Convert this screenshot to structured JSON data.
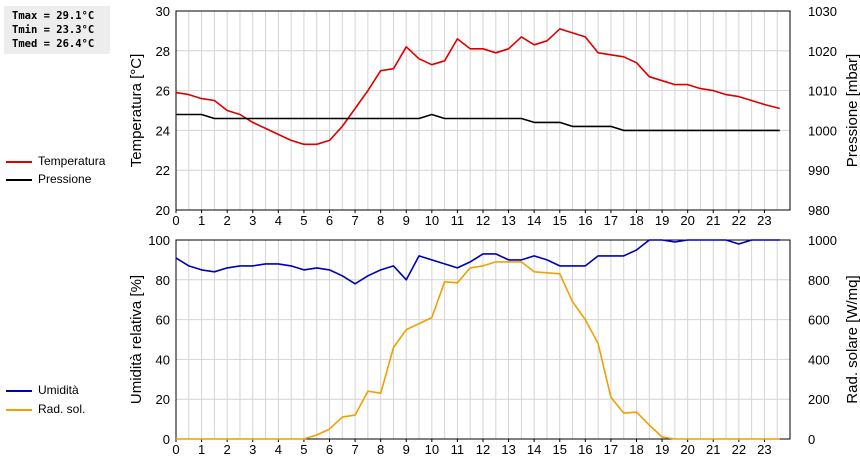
{
  "stats": {
    "tmax": "Tmax = 29.1°C",
    "tmin": "Tmin = 23.3°C",
    "tmed": "Tmed = 26.4°C"
  },
  "legend_top": [
    {
      "label": "Temperatura",
      "color": "#dd0000"
    },
    {
      "label": "Pressione",
      "color": "#000000"
    }
  ],
  "legend_bottom": [
    {
      "label": "Umidità",
      "color": "#0000bb"
    },
    {
      "label": "Rad. sol.",
      "color": "#f0a000"
    }
  ],
  "chart_data": [
    {
      "type": "line",
      "grid": true,
      "xlabel": "",
      "xlim": [
        0,
        24
      ],
      "x_ticks": [
        "0",
        "1",
        "2",
        "3",
        "4",
        "5",
        "6",
        "7",
        "8",
        "9",
        "10",
        "11",
        "12",
        "13",
        "14",
        "15",
        "16",
        "17",
        "18",
        "19",
        "20",
        "21",
        "22",
        "23"
      ],
      "y_left_label": "Temperatura [°C]",
      "y_left_lim": [
        20,
        30
      ],
      "y_left_ticks": [
        "20",
        "22",
        "24",
        "26",
        "28",
        "30"
      ],
      "y_right_label": "Pressione [mbar]",
      "y_right_lim": [
        980,
        1030
      ],
      "y_right_ticks": [
        "980",
        "990",
        "1000",
        "1010",
        "1020",
        "1030"
      ],
      "series": [
        {
          "name": "Temperatura",
          "axis": "left",
          "color": "#dd0000",
          "x": [
            0,
            0.5,
            1,
            1.5,
            2,
            2.5,
            3,
            3.5,
            4,
            4.5,
            5,
            5.5,
            6,
            6.5,
            7,
            7.5,
            8,
            8.5,
            9,
            9.5,
            10,
            10.5,
            11,
            11.5,
            12,
            12.5,
            13,
            13.5,
            14,
            14.5,
            15,
            15.5,
            16,
            16.5,
            17,
            17.5,
            18,
            18.5,
            19,
            19.5,
            20,
            20.5,
            21,
            21.5,
            22,
            22.5,
            23,
            23.6
          ],
          "y": [
            25.9,
            25.8,
            25.6,
            25.5,
            25.0,
            24.8,
            24.4,
            24.1,
            23.8,
            23.5,
            23.3,
            23.3,
            23.5,
            24.2,
            25.1,
            26.0,
            27.0,
            27.1,
            28.2,
            27.6,
            27.3,
            27.5,
            28.6,
            28.1,
            28.1,
            27.9,
            28.1,
            28.7,
            28.3,
            28.5,
            29.1,
            28.9,
            28.7,
            27.9,
            27.8,
            27.7,
            27.4,
            26.7,
            26.5,
            26.3,
            26.3,
            26.1,
            26.0,
            25.8,
            25.7,
            25.5,
            25.3,
            25.1
          ]
        },
        {
          "name": "Pressione",
          "axis": "right",
          "color": "#000000",
          "x": [
            0,
            1,
            1.5,
            3,
            9.5,
            10,
            10.5,
            13.5,
            14,
            15,
            15.5,
            17,
            17.5,
            23.6
          ],
          "y": [
            1004,
            1004,
            1003,
            1003,
            1003,
            1004,
            1003,
            1003,
            1002,
            1002,
            1001,
            1001,
            1000,
            1000
          ]
        }
      ]
    },
    {
      "type": "line",
      "grid": true,
      "xlabel": "",
      "xlim": [
        0,
        24
      ],
      "x_ticks": [
        "0",
        "1",
        "2",
        "3",
        "4",
        "5",
        "6",
        "7",
        "8",
        "9",
        "10",
        "11",
        "12",
        "13",
        "14",
        "15",
        "16",
        "17",
        "18",
        "19",
        "20",
        "21",
        "22",
        "23"
      ],
      "y_left_label": "Umidità relativa [%]",
      "y_left_lim": [
        0,
        100
      ],
      "y_left_ticks": [
        "0",
        "20",
        "40",
        "60",
        "80",
        "100"
      ],
      "y_right_label": "Rad. solare [W/mq]",
      "y_right_lim": [
        0,
        1000
      ],
      "y_right_ticks": [
        "0",
        "200",
        "400",
        "600",
        "800",
        "1000"
      ],
      "series": [
        {
          "name": "Umidità",
          "axis": "left",
          "color": "#0000bb",
          "x": [
            0,
            0.5,
            1,
            1.5,
            2,
            2.5,
            3,
            3.5,
            4,
            4.5,
            5,
            5.5,
            6,
            6.5,
            7,
            7.5,
            8,
            8.5,
            9,
            9.5,
            10,
            10.5,
            11,
            11.5,
            12,
            12.5,
            13,
            13.5,
            14,
            14.5,
            15,
            15.5,
            16,
            16.5,
            17,
            17.5,
            18,
            18.5,
            19,
            19.5,
            20,
            20.5,
            21,
            21.5,
            22,
            22.5,
            23,
            23.6
          ],
          "y": [
            91,
            87,
            85,
            84,
            86,
            87,
            87,
            88,
            88,
            87,
            85,
            86,
            85,
            82,
            78,
            82,
            85,
            87,
            80,
            92,
            90,
            88,
            86,
            89,
            93,
            93,
            90,
            90,
            92,
            90,
            87,
            87,
            87,
            92,
            92,
            92,
            95,
            100,
            100,
            99,
            100,
            100,
            100,
            100,
            98,
            100,
            100,
            100
          ]
        },
        {
          "name": "Rad. sol.",
          "axis": "right",
          "color": "#f0a000",
          "x": [
            0,
            0.5,
            1,
            1.5,
            2,
            2.5,
            3,
            3.5,
            4,
            4.5,
            5,
            5.5,
            6,
            6.5,
            7,
            7.5,
            8,
            8.5,
            9,
            9.5,
            10,
            10.5,
            11,
            11.5,
            12,
            12.5,
            13,
            13.5,
            14,
            14.5,
            15,
            15.5,
            16,
            16.5,
            17,
            17.5,
            18,
            18.5,
            19,
            19.5,
            20,
            20.5,
            21,
            21.5,
            22,
            22.5,
            23,
            23.6
          ],
          "y": [
            0,
            0,
            0,
            0,
            0,
            0,
            0,
            0,
            0,
            0,
            0,
            20,
            50,
            110,
            120,
            240,
            230,
            460,
            550,
            580,
            610,
            790,
            785,
            860,
            870,
            890,
            890,
            890,
            840,
            835,
            830,
            690,
            600,
            480,
            210,
            130,
            135,
            70,
            10,
            0,
            0,
            0,
            0,
            0,
            0,
            0,
            0,
            0
          ]
        }
      ]
    }
  ]
}
